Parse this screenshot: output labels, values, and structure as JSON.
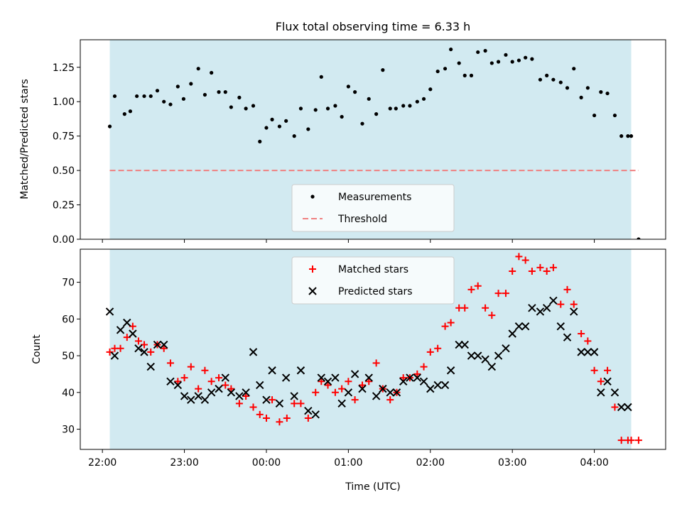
{
  "title": "Flux total observing time = 6.33 h",
  "x_axis": {
    "label": "Time (UTC)",
    "tick_labels": [
      "22:00",
      "23:00",
      "00:00",
      "01:00",
      "02:00",
      "03:00",
      "04:00"
    ]
  },
  "colors": {
    "shade": "#add8e6",
    "measurement": "#000000",
    "threshold": "#f08080",
    "matched": "#ff0000",
    "predicted": "#000000"
  },
  "chart_data": [
    {
      "type": "scatter",
      "panel": "top",
      "ylabel": "Matched/Predicted stars",
      "ylim": [
        0,
        1.45
      ],
      "yticks": [
        "0.00",
        "0.25",
        "0.50",
        "0.75",
        "1.00",
        "1.25"
      ],
      "xlim": [
        21.73,
        28.87
      ],
      "shaded_span": [
        22.09,
        28.45
      ],
      "legend": {
        "location": "lower center",
        "entries": [
          "Measurements",
          "Threshold"
        ]
      },
      "threshold": {
        "name": "Threshold",
        "value": 0.5,
        "style": "dashed"
      },
      "series": [
        {
          "name": "Measurements",
          "x": [
            22.09,
            22.15,
            22.27,
            22.34,
            22.42,
            22.51,
            22.59,
            22.67,
            22.75,
            22.83,
            22.92,
            22.99,
            23.08,
            23.17,
            23.25,
            23.33,
            23.42,
            23.5,
            23.57,
            23.67,
            23.75,
            23.84,
            23.92,
            24.0,
            24.07,
            24.16,
            24.24,
            24.34,
            24.42,
            24.51,
            24.6,
            24.67,
            24.75,
            24.84,
            24.92,
            25.0,
            25.08,
            25.17,
            25.25,
            25.34,
            25.42,
            25.51,
            25.58,
            25.67,
            25.75,
            25.84,
            25.92,
            26.0,
            26.09,
            26.18,
            26.25,
            26.35,
            26.42,
            26.5,
            26.58,
            26.67,
            26.75,
            26.83,
            26.92,
            27.0,
            27.08,
            27.16,
            27.24,
            27.34,
            27.42,
            27.5,
            27.59,
            27.67,
            27.75,
            27.84,
            27.92,
            28.0,
            28.08,
            28.16,
            28.25,
            28.33,
            28.41,
            28.45,
            28.54
          ],
          "y": [
            0.82,
            1.04,
            0.91,
            0.93,
            1.04,
            1.04,
            1.04,
            1.08,
            1.0,
            0.98,
            1.11,
            1.02,
            1.13,
            1.24,
            1.05,
            1.21,
            1.07,
            1.07,
            0.96,
            1.03,
            0.95,
            0.97,
            0.71,
            0.81,
            0.87,
            0.82,
            0.86,
            0.75,
            0.95,
            0.8,
            0.94,
            1.18,
            0.95,
            0.97,
            0.89,
            1.11,
            1.07,
            0.84,
            1.02,
            0.91,
            1.23,
            0.95,
            0.95,
            0.97,
            0.97,
            1.0,
            1.02,
            1.09,
            1.22,
            1.24,
            1.38,
            1.28,
            1.19,
            1.19,
            1.36,
            1.37,
            1.28,
            1.29,
            1.34,
            1.29,
            1.3,
            1.32,
            1.31,
            1.16,
            1.19,
            1.16,
            1.14,
            1.1,
            1.24,
            1.03,
            1.1,
            0.9,
            1.07,
            1.06,
            0.9,
            0.75,
            0.75,
            0.75,
            0.0
          ]
        }
      ]
    },
    {
      "type": "scatter",
      "panel": "bottom",
      "ylabel": "Count",
      "ylim": [
        24.5,
        79
      ],
      "yticks": [
        "30",
        "40",
        "50",
        "60",
        "70"
      ],
      "xlim": [
        21.73,
        28.87
      ],
      "shaded_span": [
        22.09,
        28.45
      ],
      "legend": {
        "location": "upper center",
        "entries": [
          "Matched stars",
          "Predicted stars"
        ]
      },
      "series": [
        {
          "name": "Matched stars",
          "x": [
            22.09,
            22.15,
            22.22,
            22.3,
            22.37,
            22.44,
            22.51,
            22.59,
            22.67,
            22.75,
            22.83,
            22.92,
            23.0,
            23.08,
            23.17,
            23.25,
            23.33,
            23.42,
            23.5,
            23.57,
            23.67,
            23.75,
            23.84,
            23.92,
            24.0,
            24.07,
            24.16,
            24.25,
            24.34,
            24.42,
            24.51,
            24.6,
            24.67,
            24.75,
            24.84,
            24.92,
            25.0,
            25.08,
            25.17,
            25.25,
            25.34,
            25.42,
            25.51,
            25.59,
            25.67,
            25.75,
            25.84,
            25.92,
            26.0,
            26.09,
            26.18,
            26.25,
            26.35,
            26.42,
            26.5,
            26.58,
            26.67,
            26.75,
            26.83,
            26.92,
            27.0,
            27.08,
            27.16,
            27.24,
            27.34,
            27.42,
            27.5,
            27.59,
            27.67,
            27.75,
            27.84,
            27.92,
            28.0,
            28.08,
            28.16,
            28.25,
            28.33,
            28.41,
            28.45,
            28.54
          ],
          "y": [
            51,
            52,
            52,
            55,
            58,
            54,
            53,
            51,
            53,
            52,
            48,
            43,
            44,
            47,
            41,
            46,
            43,
            44,
            42,
            41,
            37,
            39,
            36,
            34,
            33,
            38,
            32,
            33,
            37,
            37,
            33,
            40,
            43,
            42,
            40,
            41,
            43,
            38,
            42,
            43,
            48,
            41,
            38,
            40,
            44,
            44,
            45,
            47,
            51,
            52,
            58,
            59,
            63,
            63,
            68,
            69,
            63,
            61,
            67,
            67,
            73,
            77,
            76,
            73,
            74,
            73,
            74,
            64,
            68,
            64,
            56,
            54,
            46,
            43,
            46,
            36,
            27,
            27,
            27,
            27
          ]
        },
        {
          "name": "Predicted stars",
          "x": [
            22.09,
            22.15,
            22.22,
            22.3,
            22.37,
            22.44,
            22.51,
            22.59,
            22.67,
            22.75,
            22.83,
            22.92,
            23.0,
            23.08,
            23.17,
            23.25,
            23.33,
            23.42,
            23.5,
            23.57,
            23.67,
            23.75,
            23.84,
            23.92,
            24.0,
            24.07,
            24.16,
            24.24,
            24.34,
            24.42,
            24.51,
            24.6,
            24.67,
            24.75,
            24.84,
            24.92,
            25.0,
            25.08,
            25.17,
            25.25,
            25.34,
            25.42,
            25.51,
            25.59,
            25.67,
            25.75,
            25.84,
            25.92,
            26.0,
            26.09,
            26.18,
            26.25,
            26.35,
            26.42,
            26.5,
            26.58,
            26.67,
            26.75,
            26.83,
            26.92,
            27.0,
            27.08,
            27.16,
            27.24,
            27.34,
            27.42,
            27.5,
            27.59,
            27.67,
            27.75,
            27.84,
            27.92,
            28.0,
            28.08,
            28.16,
            28.25,
            28.33,
            28.41
          ],
          "y": [
            62,
            50,
            57,
            59,
            56,
            52,
            51,
            47,
            53,
            53,
            43,
            42,
            39,
            38,
            39,
            38,
            40,
            41,
            44,
            40,
            39,
            40,
            51,
            42,
            38,
            46,
            37,
            44,
            39,
            46,
            35,
            34,
            44,
            43,
            44,
            37,
            40,
            45,
            41,
            44,
            39,
            41,
            40,
            40,
            43,
            44,
            44,
            43,
            41,
            42,
            42,
            46,
            53,
            53,
            50,
            50,
            49,
            47,
            50,
            52,
            56,
            58,
            58,
            63,
            62,
            63,
            65,
            58,
            55,
            62,
            51,
            51,
            51,
            40,
            43,
            40,
            36,
            36
          ]
        }
      ]
    }
  ]
}
